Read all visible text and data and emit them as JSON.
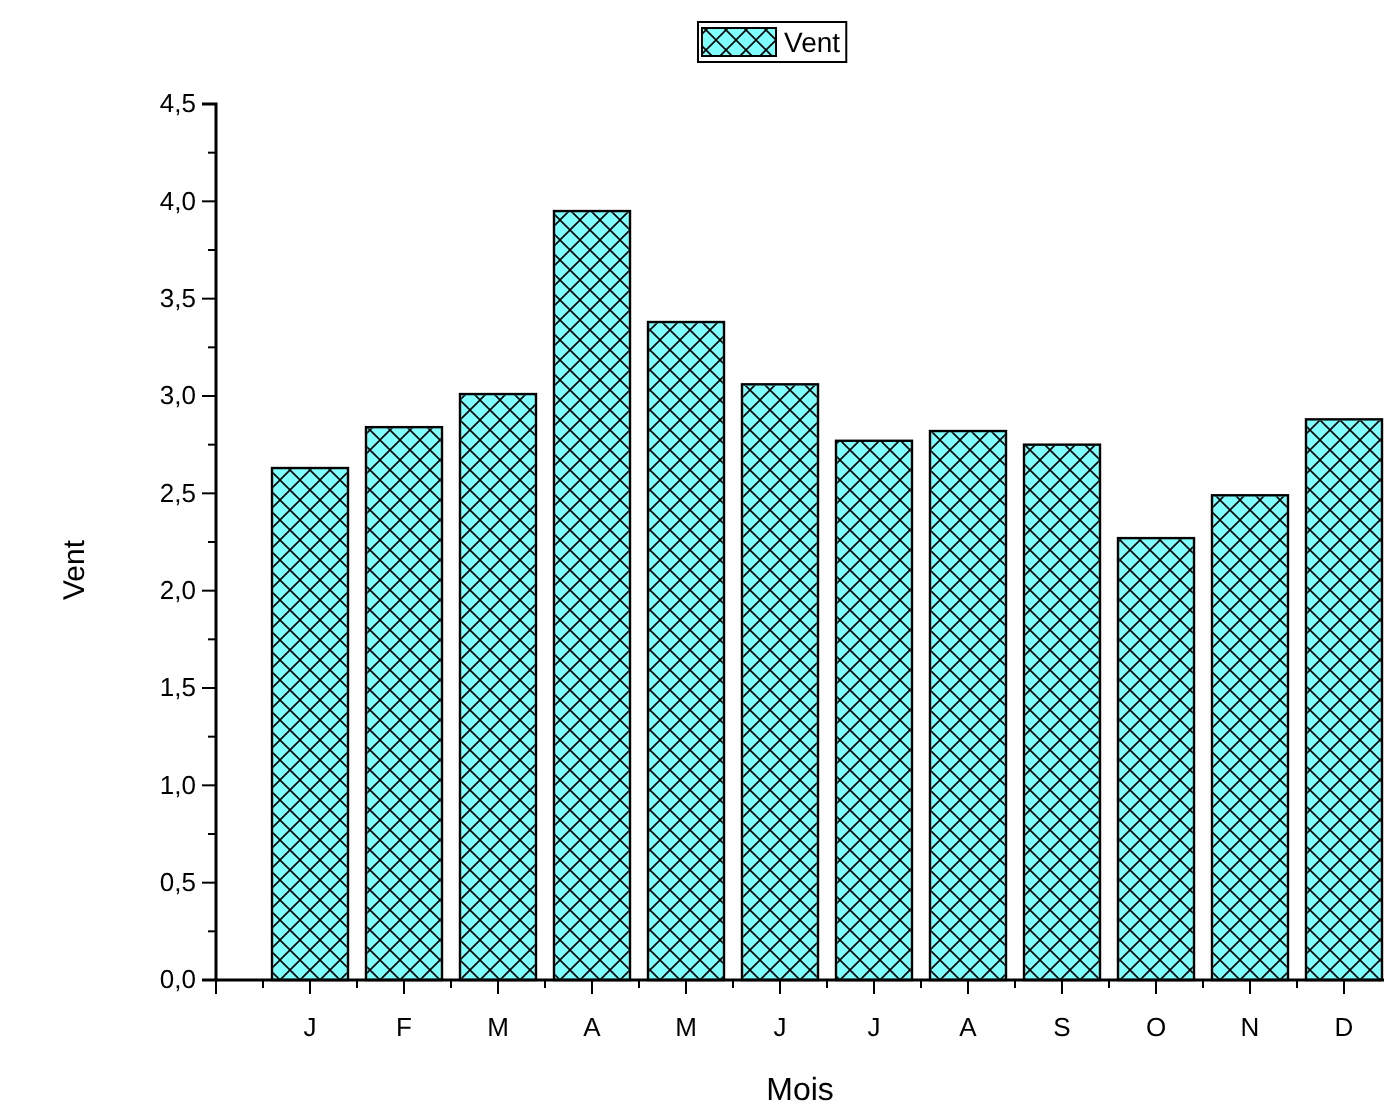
{
  "chart_data": {
    "type": "bar",
    "xlabel": "Mois",
    "ylabel": "Vent",
    "categories": [
      "J",
      "F",
      "M",
      "A",
      "M",
      "J",
      "J",
      "A",
      "S",
      "O",
      "N",
      "D"
    ],
    "series": [
      {
        "name": "Vent",
        "color": "#80ffff",
        "values": [
          2.63,
          2.84,
          3.01,
          3.95,
          3.38,
          3.06,
          2.77,
          2.82,
          2.75,
          2.27,
          2.49,
          2.88
        ]
      }
    ],
    "ylim": [
      0,
      4.5
    ],
    "yticks": [
      {
        "value": 0,
        "label": "0,0"
      },
      {
        "value": 0.5,
        "label": "0,5"
      },
      {
        "value": 1,
        "label": "1,0"
      },
      {
        "value": 1.5,
        "label": "1,5"
      },
      {
        "value": 2,
        "label": "2,0"
      },
      {
        "value": 2.5,
        "label": "2,5"
      },
      {
        "value": 3,
        "label": "3,0"
      },
      {
        "value": 3.5,
        "label": "3,5"
      },
      {
        "value": 4,
        "label": "4,0"
      },
      {
        "value": 4.5,
        "label": "4,5"
      }
    ],
    "legend": "top",
    "grid": false
  }
}
